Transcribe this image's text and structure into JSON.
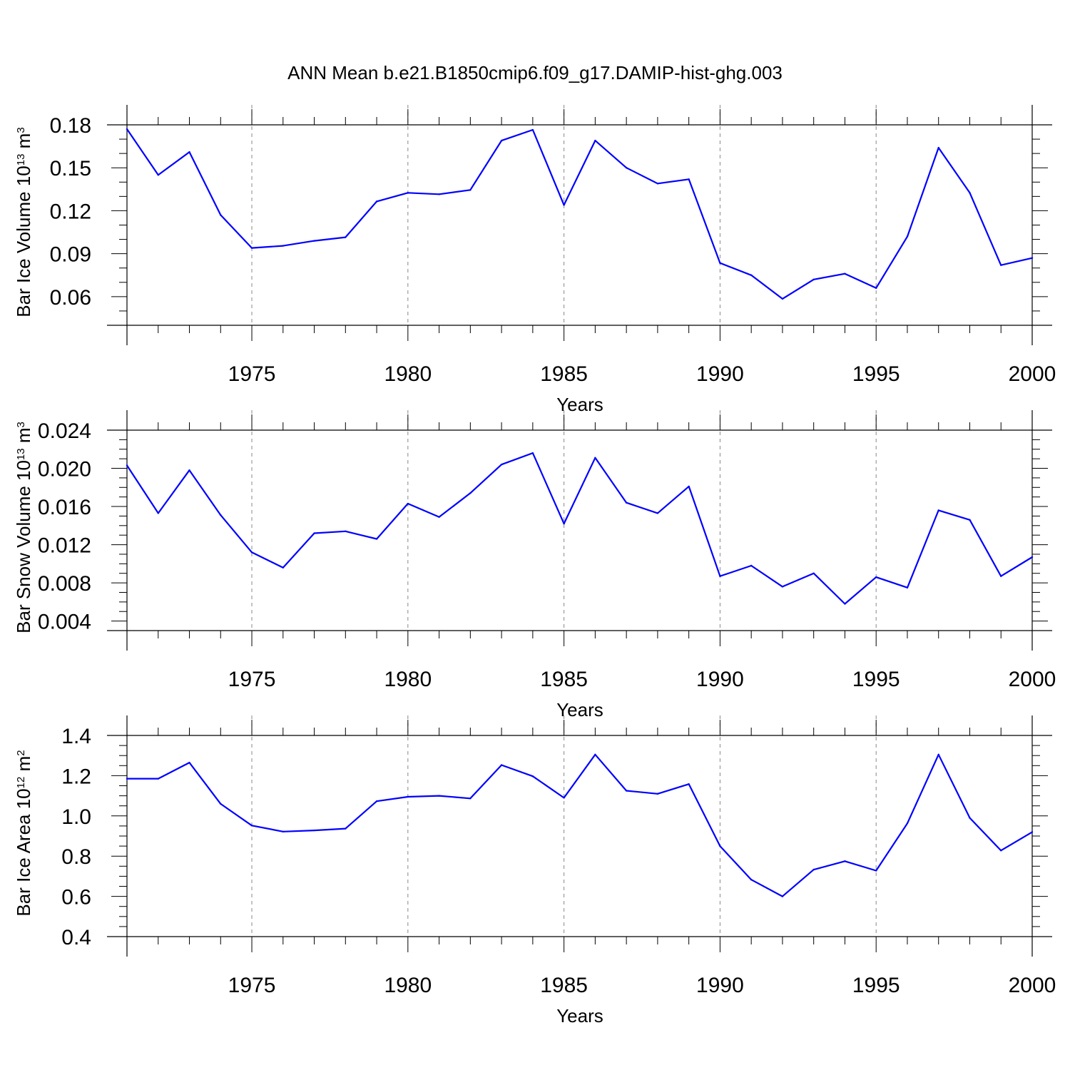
{
  "title": "ANN Mean b.e21.B1850cmip6.f09_g17.DAMIP-hist-ghg.003",
  "colors": {
    "line": "#0000ff",
    "axis": "#000000",
    "grid": "#888888"
  },
  "chart_data": [
    {
      "type": "line",
      "title": "ANN Mean b.e21.B1850cmip6.f09_g17.DAMIP-hist-ghg.003",
      "ylabel": {
        "main": "Bar Ice Volume 10",
        "exp": "13",
        "unit": " m",
        "unit_exp": "3"
      },
      "xlabel": "Years",
      "xlim": [
        1971,
        2000
      ],
      "ylim": [
        0.04,
        0.18
      ],
      "yticks": [
        0.06,
        0.09,
        0.12,
        0.15,
        0.18
      ],
      "ytick_labels": [
        "0.06",
        "0.09",
        "0.12",
        "0.15",
        "0.18"
      ],
      "yminor_step": 0.01,
      "xticks": [
        1975,
        1980,
        1985,
        1990,
        1995,
        2000
      ],
      "xtick_labels": [
        "1975",
        "1980",
        "1985",
        "1990",
        "1995",
        "2000"
      ],
      "grid": "vertical dashed at major x ticks",
      "x": [
        1971,
        1972,
        1973,
        1974,
        1975,
        1976,
        1977,
        1978,
        1979,
        1980,
        1981,
        1982,
        1983,
        1984,
        1985,
        1986,
        1987,
        1988,
        1989,
        1990,
        1991,
        1992,
        1993,
        1994,
        1995,
        1996,
        1997,
        1998,
        1999,
        2000
      ],
      "values": [
        0.177,
        0.145,
        0.161,
        0.117,
        0.094,
        0.0955,
        0.099,
        0.1015,
        0.1265,
        0.1325,
        0.1315,
        0.1345,
        0.169,
        0.1765,
        0.124,
        0.169,
        0.15,
        0.139,
        0.142,
        0.0835,
        0.075,
        0.0585,
        0.072,
        0.076,
        0.066,
        0.102,
        0.164,
        0.1325,
        0.082,
        0.087
      ]
    },
    {
      "type": "line",
      "ylabel": {
        "main": "Bar Snow Volume 10",
        "exp": "13",
        "unit": " m",
        "unit_exp": "3"
      },
      "xlabel": "Years",
      "xlim": [
        1971,
        2000
      ],
      "ylim": [
        0.003,
        0.024
      ],
      "yticks": [
        0.004,
        0.008,
        0.012,
        0.016,
        0.02,
        0.024
      ],
      "ytick_labels": [
        "0.004",
        "0.008",
        "0.012",
        "0.016",
        "0.020",
        "0.024"
      ],
      "yminor_step": 0.001,
      "xticks": [
        1975,
        1980,
        1985,
        1990,
        1995,
        2000
      ],
      "xtick_labels": [
        "1975",
        "1980",
        "1985",
        "1990",
        "1995",
        "2000"
      ],
      "grid": "vertical dashed at major x ticks",
      "x": [
        1971,
        1972,
        1973,
        1974,
        1975,
        1976,
        1977,
        1978,
        1979,
        1980,
        1981,
        1982,
        1983,
        1984,
        1985,
        1986,
        1987,
        1988,
        1989,
        1990,
        1991,
        1992,
        1993,
        1994,
        1995,
        1996,
        1997,
        1998,
        1999,
        2000
      ],
      "values": [
        0.0203,
        0.0153,
        0.0198,
        0.0151,
        0.0112,
        0.0096,
        0.0132,
        0.0134,
        0.0126,
        0.0163,
        0.0149,
        0.0174,
        0.0204,
        0.0216,
        0.0142,
        0.0211,
        0.0164,
        0.0153,
        0.0181,
        0.0087,
        0.0098,
        0.0076,
        0.009,
        0.0058,
        0.0086,
        0.0075,
        0.0156,
        0.0146,
        0.0087,
        0.0107
      ]
    },
    {
      "type": "line",
      "ylabel": {
        "main": "Bar Ice Area 10",
        "exp": "12",
        "unit": " m",
        "unit_exp": "2"
      },
      "xlabel": "Years",
      "xlim": [
        1971,
        2000
      ],
      "ylim": [
        0.4,
        1.4
      ],
      "yticks": [
        0.4,
        0.6,
        0.8,
        1.0,
        1.2,
        1.4
      ],
      "ytick_labels": [
        "0.4",
        "0.6",
        "0.8",
        "1.0",
        "1.2",
        "1.4"
      ],
      "yminor_step": 0.05,
      "xticks": [
        1975,
        1980,
        1985,
        1990,
        1995,
        2000
      ],
      "xtick_labels": [
        "1975",
        "1980",
        "1985",
        "1990",
        "1995",
        "2000"
      ],
      "grid": "vertical dashed at major x ticks",
      "x": [
        1971,
        1972,
        1973,
        1974,
        1975,
        1976,
        1977,
        1978,
        1979,
        1980,
        1981,
        1982,
        1983,
        1984,
        1985,
        1986,
        1987,
        1988,
        1989,
        1990,
        1991,
        1992,
        1993,
        1994,
        1995,
        1996,
        1997,
        1998,
        1999,
        2000
      ],
      "values": [
        1.185,
        1.185,
        1.265,
        1.06,
        0.952,
        0.922,
        0.928,
        0.937,
        1.073,
        1.095,
        1.1,
        1.087,
        1.253,
        1.197,
        1.09,
        1.305,
        1.125,
        1.11,
        1.158,
        0.85,
        0.683,
        0.6,
        0.733,
        0.775,
        0.728,
        0.963,
        1.305,
        0.99,
        0.828,
        0.92
      ]
    }
  ]
}
